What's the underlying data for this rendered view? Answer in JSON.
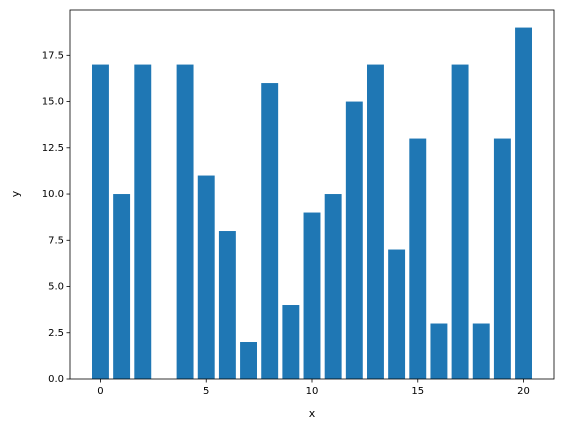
{
  "chart_data": {
    "type": "bar",
    "x": [
      0,
      1,
      2,
      3,
      4,
      5,
      6,
      7,
      8,
      9,
      10,
      11,
      12,
      13,
      14,
      15,
      16,
      17,
      18,
      19,
      20
    ],
    "values": [
      17,
      10,
      17,
      0,
      17,
      11,
      8,
      2,
      16,
      4,
      9,
      10,
      15,
      17,
      7,
      13,
      3,
      17,
      3,
      13,
      19
    ],
    "color": "#1f77b4",
    "x_label": "x",
    "y_label": "y",
    "xlim": [
      -1.44,
      21.44
    ],
    "xticks": [
      0,
      5,
      10,
      15,
      20
    ],
    "ylim": [
      0,
      19.95
    ],
    "yticks": [
      {
        "value": 0,
        "label": "0.0"
      },
      2.5,
      {
        "value": 5,
        "label": "5.0"
      },
      7.5,
      {
        "value": 10,
        "label": "10.0"
      },
      12.5,
      {
        "value": 15,
        "label": "15.0"
      },
      17.5
    ]
  }
}
